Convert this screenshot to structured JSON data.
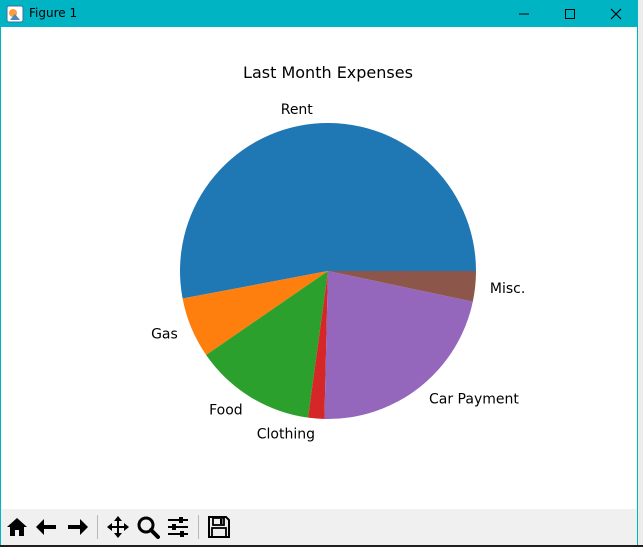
{
  "window": {
    "title": "Figure 1",
    "titlebar_color": "#00b4c4",
    "controls": [
      "minimize-icon",
      "maximize-icon",
      "close-icon"
    ]
  },
  "chart_data": {
    "type": "pie",
    "title": "Last Month Expenses",
    "labels": [
      "Rent",
      "Gas",
      "Food",
      "Clothing",
      "Car Payment",
      "Misc."
    ],
    "values": [
      1200,
      150,
      300,
      40,
      500,
      75
    ],
    "colors": [
      "#1f77b4",
      "#ff7f0e",
      "#2ca02c",
      "#d62728",
      "#9467bd",
      "#8c564b"
    ],
    "start_angle_deg": 0,
    "direction": "counterclockwise"
  },
  "toolbar": {
    "items": [
      "home-icon",
      "back-icon",
      "forward-icon",
      "pan-icon",
      "zoom-icon",
      "configure-subplots-icon",
      "save-icon"
    ]
  }
}
